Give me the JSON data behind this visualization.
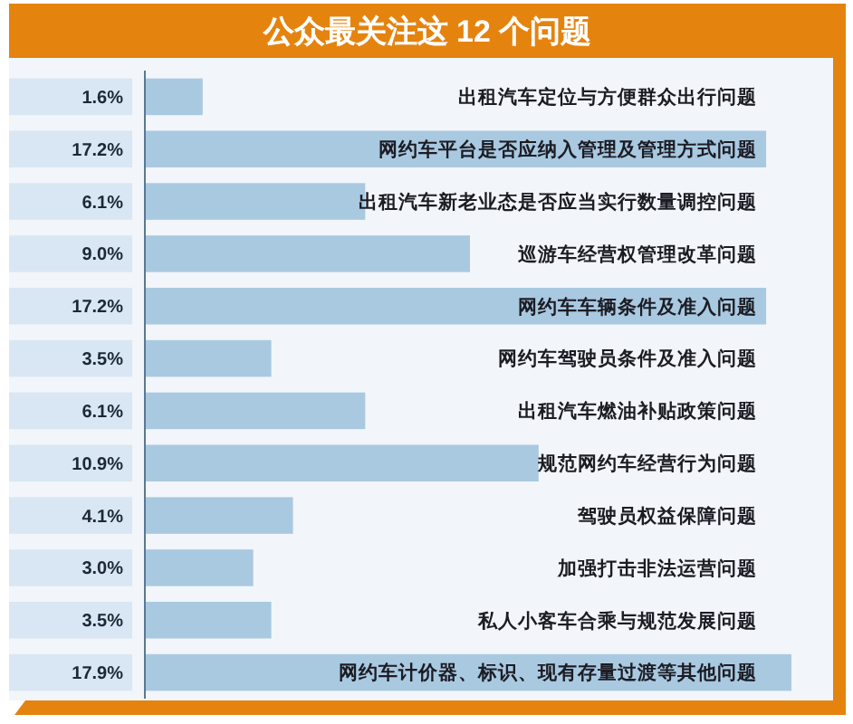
{
  "chart_data": {
    "type": "bar",
    "orientation": "horizontal",
    "title": "公众最关注这 12 个问题",
    "categories": [
      "出租汽车定位与方便群众出行问题",
      "网约车平台是否应纳入管理及管理方式问题",
      "出租汽车新老业态是否应当实行数量调控问题",
      "巡游车经营权管理改革问题",
      "网约车车辆条件及准入问题",
      "网约车驾驶员条件及准入问题",
      "出租汽车燃油补贴政策问题",
      "规范网约车经营行为问题",
      "驾驶员权益保障问题",
      "加强打击非法运营问题",
      "私人小客车合乘与规范发展问题",
      "网约车计价器、标识、现有存量过渡等其他问题"
    ],
    "values": [
      1.6,
      17.2,
      6.1,
      9.0,
      17.2,
      3.5,
      6.1,
      10.9,
      4.1,
      3.0,
      3.5,
      17.9
    ],
    "value_labels": [
      "1.6%",
      "17.2%",
      "6.1%",
      "9.0%",
      "17.2%",
      "3.5%",
      "6.1%",
      "10.9%",
      "4.1%",
      "3.0%",
      "3.5%",
      "17.9%"
    ],
    "color": "#a9c9e1"
  }
}
